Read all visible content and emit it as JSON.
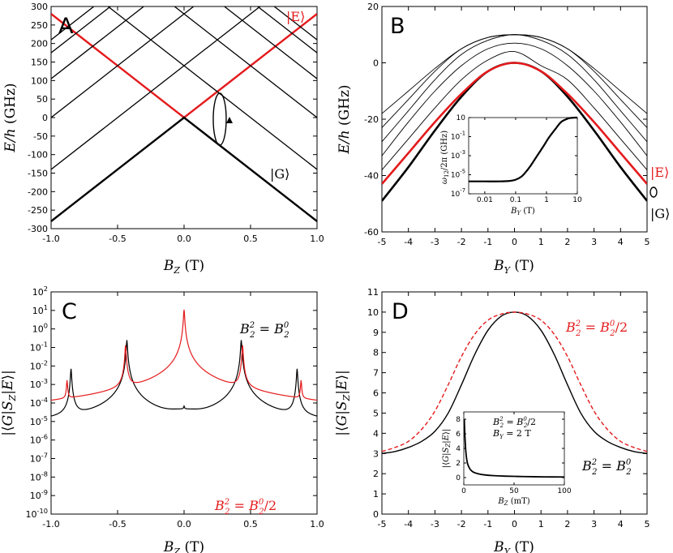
{
  "chart_data": [
    {
      "panel": "A",
      "type": "line",
      "xlabel": "B_Z (T)",
      "ylabel": "E/h (GHz)",
      "xlim": [
        -1.0,
        1.0
      ],
      "ylim": [
        -300,
        300
      ],
      "xticks": [
        "-1.0",
        "-0.5",
        "0.0",
        "0.5",
        "1.0"
      ],
      "yticks": [
        "-300",
        "-250",
        "-200",
        "-150",
        "-100",
        "-50",
        "0",
        "50",
        "100",
        "150",
        "200",
        "250",
        "300"
      ],
      "annotations": [
        "|E⟩",
        "|G⟩"
      ],
      "series": [
        {
          "x": [
            -1.0,
            0.0,
            1.0
          ],
          "y": [
            -280,
            0,
            280
          ]
        },
        {
          "x": [
            -1.0,
            0.0,
            1.0
          ],
          "y": [
            280,
            0,
            280
          ]
        },
        {
          "x": [
            -1.0,
            0.0,
            1.0
          ],
          "y": [
            -280,
            0,
            -280
          ]
        },
        {
          "x": [
            -1.0,
            1.0
          ],
          "y": [
            -140,
            420
          ]
        },
        {
          "x": [
            -1.0,
            1.0
          ],
          "y": [
            0,
            560
          ]
        },
        {
          "x": [
            -1.0,
            1.0
          ],
          "y": [
            105,
            665
          ]
        },
        {
          "x": [
            -1.0,
            1.0
          ],
          "y": [
            175,
            735
          ]
        },
        {
          "x": [
            -1.0,
            1.0
          ],
          "y": [
            210,
            770
          ]
        },
        {
          "x": [
            -1.0,
            1.0
          ],
          "y": [
            420,
            -140
          ]
        },
        {
          "x": [
            -1.0,
            1.0
          ],
          "y": [
            560,
            0
          ]
        },
        {
          "x": [
            -1.0,
            1.0
          ],
          "y": [
            665,
            105
          ]
        },
        {
          "x": [
            -1.0,
            1.0
          ],
          "y": [
            735,
            175
          ]
        },
        {
          "x": [
            -1.0,
            1.0
          ],
          "y": [
            770,
            210
          ]
        }
      ]
    },
    {
      "panel": "B",
      "type": "line",
      "xlabel": "B_Y (T)",
      "ylabel": "E/h (GHz)",
      "xlim": [
        -5,
        5
      ],
      "ylim": [
        -60,
        20
      ],
      "xticks": [
        "-5",
        "-4",
        "-3",
        "-2",
        "-1",
        "0",
        "1",
        "2",
        "3",
        "4",
        "5"
      ],
      "yticks": [
        "-60",
        "-40",
        "-20",
        "0",
        "20"
      ],
      "annotations": [
        "|E⟩",
        "|G⟩"
      ],
      "series": [
        {
          "x": [
            -5,
            -4,
            -3,
            -2,
            -1,
            0,
            1,
            2,
            3,
            4,
            5
          ],
          "y": [
            -49,
            -37,
            -24,
            -12,
            -3,
            0,
            -3,
            -12,
            -24,
            -37,
            -49
          ]
        },
        {
          "x": [
            -5,
            -4,
            -3,
            -2,
            -1,
            0,
            1,
            2,
            3,
            4,
            5
          ],
          "y": [
            -43,
            -32,
            -21,
            -11,
            -3,
            0,
            -3,
            -11,
            -21,
            -32,
            -43
          ]
        },
        {
          "x": [
            -5,
            -4,
            -3,
            -2,
            -1,
            0,
            1,
            2,
            3,
            4,
            5
          ],
          "y": [
            -38,
            -27,
            -16,
            -6,
            1,
            4,
            -1,
            -6,
            -16,
            -27,
            -38
          ]
        },
        {
          "x": [
            -5,
            -4,
            -3,
            -2,
            -1,
            0,
            1,
            2,
            3,
            4,
            5
          ],
          "y": [
            -33,
            -21,
            -10,
            -1,
            5,
            7,
            5,
            -1,
            -10,
            -21,
            -33
          ]
        },
        {
          "x": [
            -5,
            -4,
            -3,
            -2,
            -1,
            0,
            1,
            2,
            3,
            4,
            5
          ],
          "y": [
            -28,
            -17,
            -6,
            3,
            8,
            10,
            8,
            3,
            -6,
            -17,
            -28
          ]
        },
        {
          "x": [
            -5,
            -4,
            -3,
            -2,
            -1,
            0,
            1,
            2,
            3,
            4,
            5
          ],
          "y": [
            -23,
            -13,
            -3,
            5,
            9,
            10,
            9,
            5,
            -3,
            -13,
            -23
          ]
        },
        {
          "x": [
            -5,
            -4,
            -3,
            -2,
            -1,
            0,
            1,
            2,
            3,
            4,
            5
          ],
          "y": [
            -18,
            -10,
            -2,
            5,
            9,
            10,
            9,
            5,
            -2,
            -10,
            -18
          ]
        }
      ],
      "inset": {
        "xlabel": "B_Y (T)",
        "ylabel": "ω12/2π (GHz)",
        "xscale": "log",
        "yscale": "log",
        "xlim": [
          0.003,
          10
        ],
        "ylim": [
          1e-07,
          10
        ],
        "xticks": [
          "0.01",
          "0.1",
          "1",
          "10"
        ],
        "yticks": [
          "10",
          "10^-1",
          "10^-3",
          "10^-5",
          "10^-7"
        ],
        "x": [
          0.003,
          0.01,
          0.03,
          0.06,
          0.1,
          0.15,
          0.2,
          0.3,
          0.5,
          0.8,
          1.2,
          2,
          3,
          5,
          7,
          10
        ],
        "y": [
          2e-06,
          2e-06,
          2e-06,
          2.2e-06,
          3e-06,
          6e-06,
          1.5e-05,
          8e-05,
          0.001,
          0.01,
          0.08,
          0.7,
          3.5,
          8,
          9.5,
          10
        ]
      }
    },
    {
      "panel": "C",
      "type": "line",
      "xlabel": "B_Z (T)",
      "ylabel": "|⟨G|S_Z|E⟩|",
      "xlim": [
        -1.0,
        1.0
      ],
      "yscale": "log",
      "ylim": [
        1e-10,
        100
      ],
      "xticks": [
        "-1.0",
        "-0.5",
        "0.0",
        "0.5",
        "1.0"
      ],
      "yticks": [
        "10^2",
        "10^1",
        "10^0",
        "10^-1",
        "10^-2",
        "10^-3",
        "10^-4",
        "10^-5",
        "10^-6",
        "10^-7",
        "10^-8",
        "10^-9",
        "10^-10"
      ],
      "annotations": [
        "B_2^2 = B_2^0",
        "B_2^2 = B_2^0/2"
      ],
      "series": [
        {
          "name": "B_2^2 = B_2^0",
          "color": "#000000",
          "baseline": 2e-06,
          "center_base": 1.5e-05,
          "peaks": [
            {
              "x": -0.85,
              "y": 0.007
            },
            {
              "x": -0.43,
              "y": 0.25
            },
            {
              "x": 0.0,
              "y": 2e-05
            },
            {
              "x": 0.43,
              "y": 0.25
            },
            {
              "x": 0.85,
              "y": 0.007
            }
          ]
        },
        {
          "name": "B_2^2 = B_2^0/2",
          "color": "#e41a1c",
          "baseline": 1.5e-09,
          "center_base": 1.5e-09,
          "peaks": [
            {
              "x": -0.88,
              "y": 0.0015
            },
            {
              "x": -0.44,
              "y": 0.13
            },
            {
              "x": 0.0,
              "y": 11
            },
            {
              "x": 0.44,
              "y": 0.13
            },
            {
              "x": 0.88,
              "y": 0.0015
            }
          ]
        }
      ]
    },
    {
      "panel": "D",
      "type": "line",
      "xlabel": "B_Y (T)",
      "ylabel": "|⟨G|S_Z|E⟩|",
      "xlim": [
        -5,
        5
      ],
      "ylim": [
        0,
        11
      ],
      "xticks": [
        "-5",
        "-4",
        "-3",
        "-2",
        "-1",
        "0",
        "1",
        "2",
        "3",
        "4",
        "5"
      ],
      "yticks": [
        "0",
        "1",
        "2",
        "3",
        "4",
        "5",
        "6",
        "7",
        "8",
        "9",
        "10",
        "11"
      ],
      "annotations": [
        "B_2^2 = B_2^0/2",
        "B_2^2 = B_2^0"
      ],
      "series": [
        {
          "name": "B_2^2 = B_2^0",
          "color": "#000000",
          "x": [
            -5,
            -4.5,
            -4,
            -3.5,
            -3,
            -2.5,
            -2,
            -1.5,
            -1,
            -0.5,
            0,
            0.5,
            1,
            1.5,
            2,
            2.5,
            3,
            3.5,
            4,
            4.5,
            5
          ],
          "y": [
            3.0,
            3.1,
            3.3,
            3.6,
            4.1,
            5.0,
            6.4,
            7.9,
            9.1,
            9.8,
            10.0,
            9.8,
            9.1,
            7.9,
            6.4,
            5.0,
            4.1,
            3.6,
            3.3,
            3.1,
            3.0
          ]
        },
        {
          "name": "B_2^2 = B_2^0/2",
          "color": "#e41a1c",
          "dashed": true,
          "x": [
            -5,
            -4.5,
            -4,
            -3.5,
            -3,
            -2.5,
            -2,
            -1.5,
            -1,
            -0.5,
            0,
            0.5,
            1,
            1.5,
            2,
            2.5,
            3,
            3.5,
            4,
            4.5,
            5
          ],
          "y": [
            3.1,
            3.3,
            3.6,
            4.2,
            5.1,
            6.4,
            7.8,
            8.9,
            9.6,
            9.9,
            10.0,
            9.9,
            9.6,
            8.9,
            7.8,
            6.4,
            5.1,
            4.2,
            3.6,
            3.3,
            3.1
          ]
        }
      ],
      "inset": {
        "xlabel": "B_Z (mT)",
        "ylabel": "|⟨G|S_Z|E⟩|",
        "xlim": [
          0,
          100
        ],
        "ylim": [
          -1,
          9
        ],
        "xticks": [
          "0",
          "50",
          "100"
        ],
        "yticks": [
          "0",
          "2",
          "4",
          "6",
          "8"
        ],
        "annotations": [
          "B_2^2 = B_2^0/2",
          "B_Y = 2 T"
        ],
        "x": [
          0.5,
          1,
          2,
          3,
          4,
          6,
          8,
          10,
          15,
          20,
          30,
          40,
          60,
          80,
          100
        ],
        "y": [
          8.0,
          6.0,
          3.6,
          2.4,
          1.8,
          1.2,
          0.9,
          0.72,
          0.5,
          0.38,
          0.26,
          0.2,
          0.14,
          0.1,
          0.08
        ]
      }
    }
  ]
}
